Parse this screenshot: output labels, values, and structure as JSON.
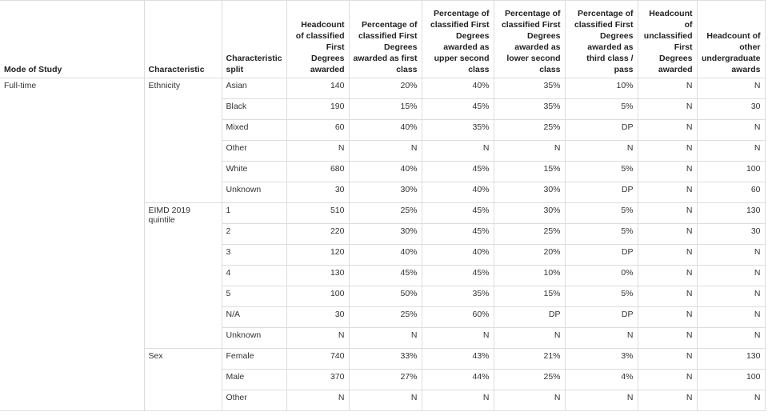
{
  "table": {
    "headers": [
      "Mode of Study",
      "Characteristic",
      "Characteristic split",
      "Headcount of classified First Degrees awarded",
      "Percentage of classified First Degrees awarded as first class",
      "Percentage of classified First Degrees awarded as upper second class",
      "Percentage of classified First Degrees awarded as lower second class",
      "Percentage of classified First Degrees awarded as third class / pass",
      "Headcount of unclassified First Degrees awarded",
      "Headcount of other undergraduate awards"
    ],
    "mode": "Full-time",
    "groups": [
      {
        "characteristic": "Ethnicity",
        "rows": [
          {
            "split": "Asian",
            "values": [
              "140",
              "20%",
              "40%",
              "35%",
              "10%",
              "N",
              "N"
            ]
          },
          {
            "split": "Black",
            "values": [
              "190",
              "15%",
              "45%",
              "35%",
              "5%",
              "N",
              "30"
            ]
          },
          {
            "split": "Mixed",
            "values": [
              "60",
              "40%",
              "35%",
              "25%",
              "DP",
              "N",
              "N"
            ]
          },
          {
            "split": "Other",
            "values": [
              "N",
              "N",
              "N",
              "N",
              "N",
              "N",
              "N"
            ]
          },
          {
            "split": "White",
            "values": [
              "680",
              "40%",
              "45%",
              "15%",
              "5%",
              "N",
              "100"
            ]
          },
          {
            "split": "Unknown",
            "values": [
              "30",
              "30%",
              "40%",
              "30%",
              "DP",
              "N",
              "60"
            ]
          }
        ]
      },
      {
        "characteristic": "EIMD 2019 quintile",
        "rows": [
          {
            "split": "1",
            "values": [
              "510",
              "25%",
              "45%",
              "30%",
              "5%",
              "N",
              "130"
            ]
          },
          {
            "split": "2",
            "values": [
              "220",
              "30%",
              "45%",
              "25%",
              "5%",
              "N",
              "30"
            ]
          },
          {
            "split": "3",
            "values": [
              "120",
              "40%",
              "40%",
              "20%",
              "DP",
              "N",
              "N"
            ]
          },
          {
            "split": "4",
            "values": [
              "130",
              "45%",
              "45%",
              "10%",
              "0%",
              "N",
              "N"
            ]
          },
          {
            "split": "5",
            "values": [
              "100",
              "50%",
              "35%",
              "15%",
              "5%",
              "N",
              "N"
            ]
          },
          {
            "split": "N/A",
            "values": [
              "30",
              "25%",
              "60%",
              "DP",
              "DP",
              "N",
              "N"
            ]
          },
          {
            "split": "Unknown",
            "values": [
              "N",
              "N",
              "N",
              "N",
              "N",
              "N",
              "N"
            ]
          }
        ]
      },
      {
        "characteristic": "Sex",
        "rows": [
          {
            "split": "Female",
            "values": [
              "740",
              "33%",
              "43%",
              "21%",
              "3%",
              "N",
              "130"
            ]
          },
          {
            "split": "Male",
            "values": [
              "370",
              "27%",
              "44%",
              "25%",
              "4%",
              "N",
              "100"
            ]
          },
          {
            "split": "Other",
            "values": [
              "N",
              "N",
              "N",
              "N",
              "N",
              "N",
              "N"
            ]
          }
        ]
      }
    ]
  }
}
